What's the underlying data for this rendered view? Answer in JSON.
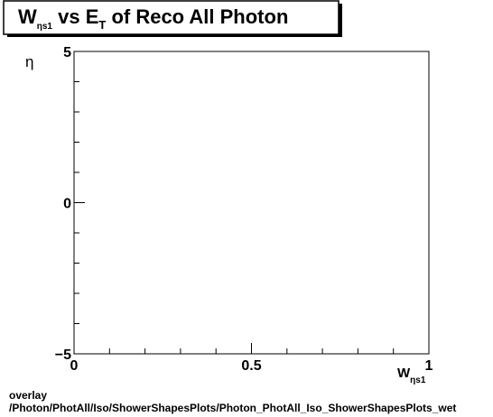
{
  "chart_data": {
    "type": "scatter",
    "title": {
      "pre": "W",
      "pre_sub": "ηs1",
      "mid": " vs E",
      "mid_sub": "T",
      "post": " of Reco All Photon"
    },
    "xlabel": {
      "main": "W",
      "sub": "ηs1"
    },
    "ylabel": "η",
    "xlim": [
      0,
      1
    ],
    "ylim": [
      -5,
      5
    ],
    "x_tick_labels": [
      {
        "value": 0,
        "label": "0"
      },
      {
        "value": 0.5,
        "label": "0.5"
      },
      {
        "value": 1,
        "label": "1"
      }
    ],
    "y_tick_labels": [
      {
        "value": 5,
        "label": "5"
      },
      {
        "value": 0,
        "label": "0"
      },
      {
        "value": -5,
        "label": "−5"
      }
    ],
    "series": [],
    "grid": false
  },
  "footer": {
    "line1": "overlay",
    "line2": "/Photon/PhotAll/Iso/ShowerShapesPlots/Photon_PhotAll_Iso_ShowerShapesPlots_wet"
  }
}
